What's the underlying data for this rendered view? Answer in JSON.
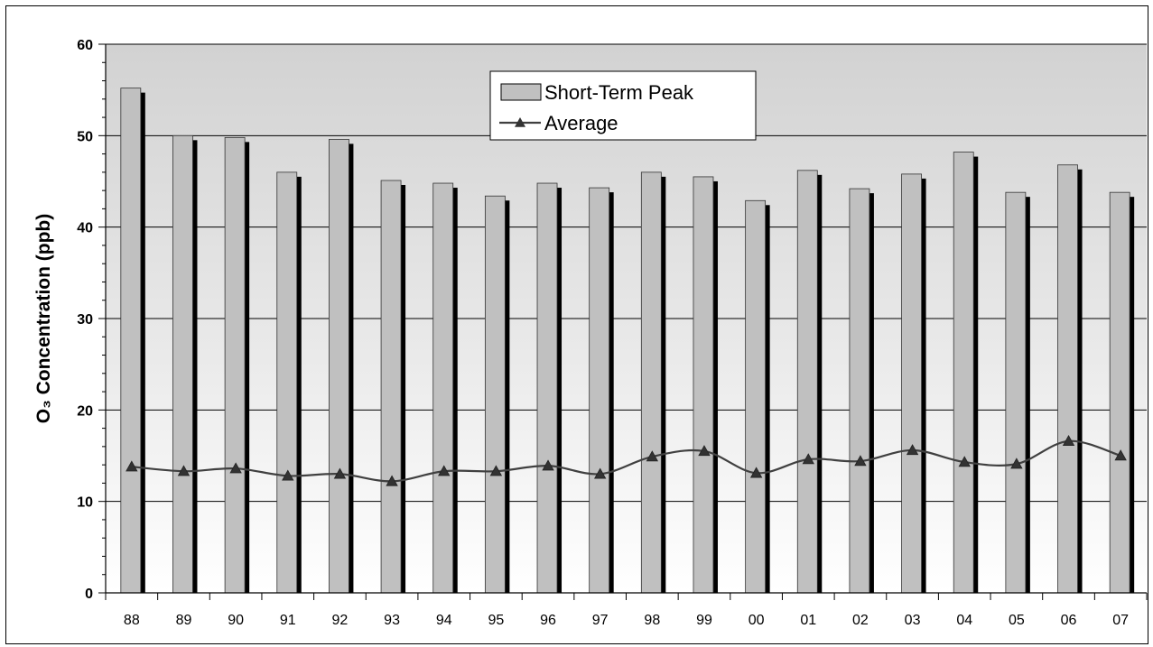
{
  "chart_data": {
    "type": "bar",
    "categories": [
      "88",
      "89",
      "90",
      "91",
      "92",
      "93",
      "94",
      "95",
      "96",
      "97",
      "98",
      "99",
      "00",
      "01",
      "02",
      "03",
      "04",
      "05",
      "06",
      "07"
    ],
    "series": [
      {
        "name": "Short-Term Peak",
        "type": "bar",
        "color": "#c0c0c0",
        "values": [
          55.2,
          50.0,
          49.8,
          46.0,
          49.6,
          45.1,
          44.8,
          43.4,
          44.8,
          44.3,
          46.0,
          45.5,
          42.9,
          46.2,
          44.2,
          45.8,
          48.2,
          43.8,
          46.8,
          43.8
        ]
      },
      {
        "name": "Average",
        "type": "line",
        "color": "#404040",
        "marker": "triangle",
        "values": [
          13.8,
          13.3,
          13.6,
          12.8,
          13.0,
          12.2,
          13.3,
          13.3,
          13.9,
          13.0,
          14.9,
          15.5,
          13.1,
          14.6,
          14.4,
          15.6,
          14.3,
          14.1,
          16.6,
          15.0
        ]
      }
    ],
    "ylabel": "O₃ Concentration (ppb)",
    "xlabel": "",
    "ylim": [
      0,
      60
    ],
    "yticks": [
      "0",
      "10",
      "20",
      "30",
      "40",
      "50",
      "60"
    ],
    "grid": true,
    "legend": "top-center",
    "background": "gradient-white-to-gray"
  }
}
